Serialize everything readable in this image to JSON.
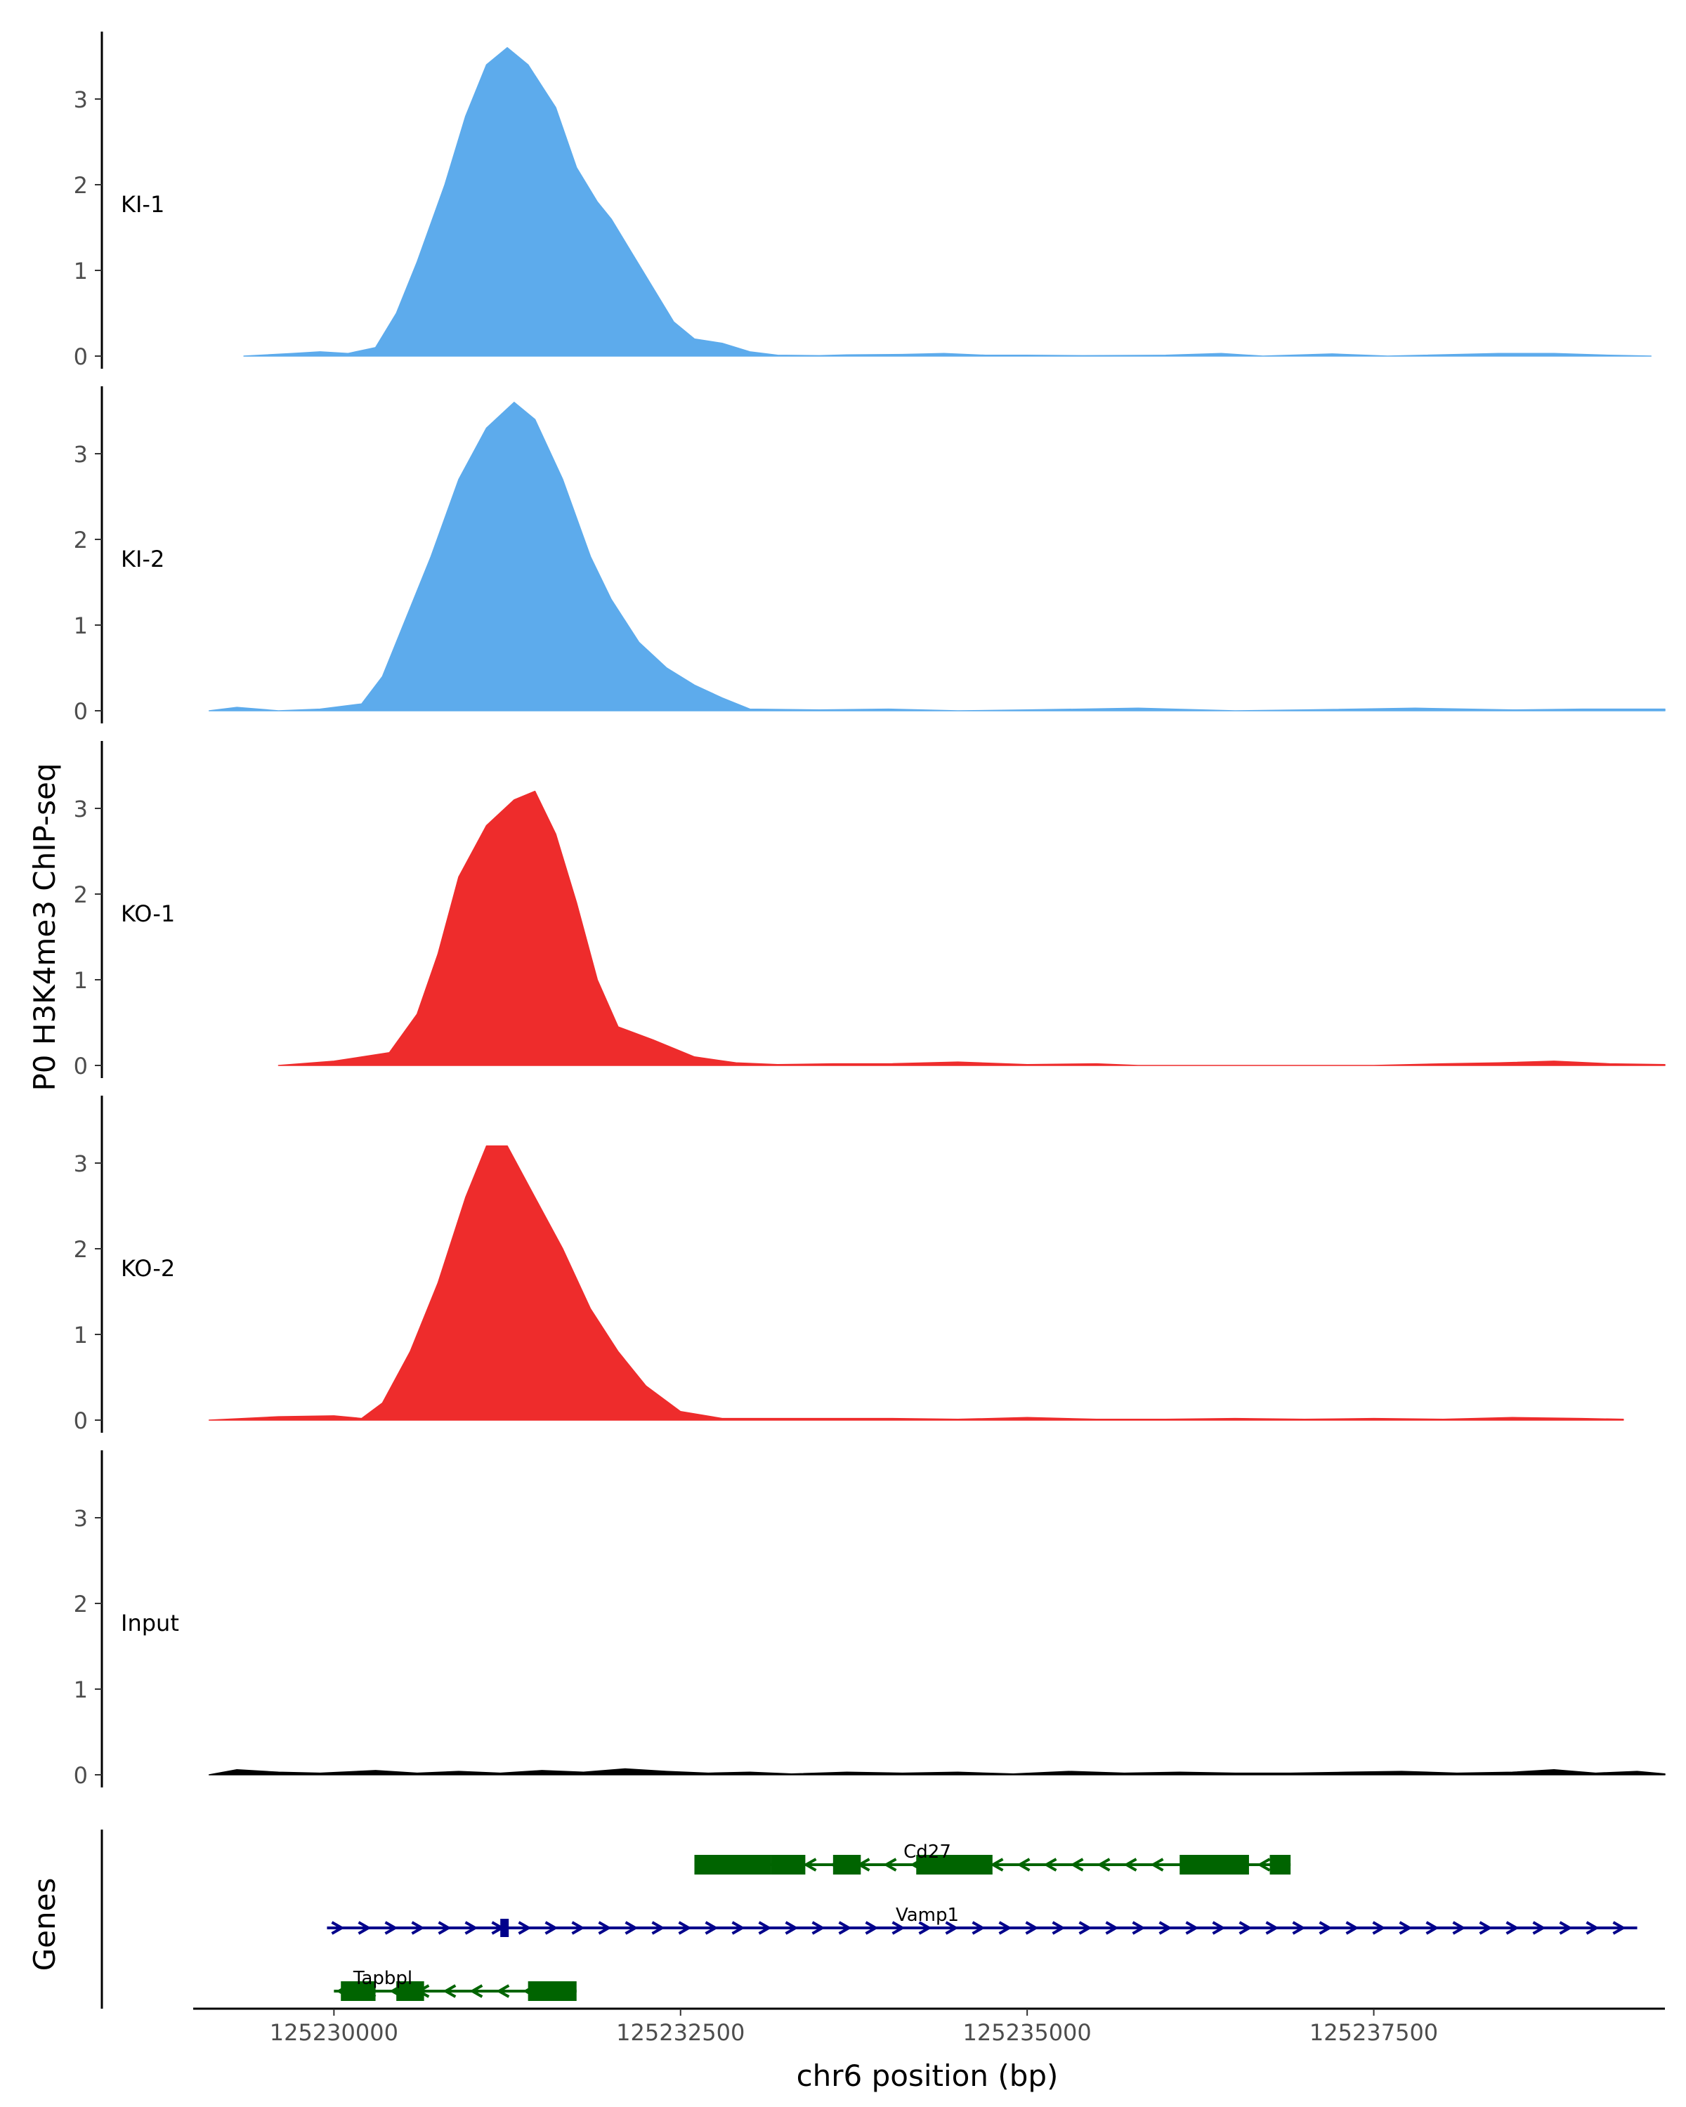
{
  "chart_data": {
    "type": "area",
    "y_axis_title": "P0 H3K4me3 ChIP-seq",
    "x_axis_title": "chr6 position (bp)",
    "xlim": [
      125229000,
      125239600
    ],
    "ylim": [
      0,
      3.8
    ],
    "y_ticks": [
      0,
      1,
      2,
      3
    ],
    "x_ticks": [
      125230000,
      125232500,
      125235000,
      125237500
    ],
    "x_tick_labels": [
      "125230000",
      "125232500",
      "125235000",
      "125237500"
    ],
    "grid": false,
    "tracks": [
      {
        "name": "KI-1",
        "color": "#5DABEC",
        "points": [
          [
            125229350,
            0
          ],
          [
            125229700,
            0.03
          ],
          [
            125229900,
            0.05
          ],
          [
            125230100,
            0.03
          ],
          [
            125230300,
            0.1
          ],
          [
            125230450,
            0.5
          ],
          [
            125230600,
            1.1
          ],
          [
            125230800,
            2.0
          ],
          [
            125230950,
            2.8
          ],
          [
            125231100,
            3.4
          ],
          [
            125231250,
            3.6
          ],
          [
            125231400,
            3.4
          ],
          [
            125231600,
            2.9
          ],
          [
            125231750,
            2.2
          ],
          [
            125231900,
            1.8
          ],
          [
            125232000,
            1.6
          ],
          [
            125232150,
            1.2
          ],
          [
            125232300,
            0.8
          ],
          [
            125232450,
            0.4
          ],
          [
            125232600,
            0.2
          ],
          [
            125232800,
            0.15
          ],
          [
            125233000,
            0.05
          ],
          [
            125233200,
            0.01
          ],
          [
            125233500,
            0.005
          ],
          [
            125233700,
            0.015
          ],
          [
            125234100,
            0.02
          ],
          [
            125234400,
            0.03
          ],
          [
            125234700,
            0.01
          ],
          [
            125235000,
            0.01
          ],
          [
            125235400,
            0.005
          ],
          [
            125236000,
            0.01
          ],
          [
            125236400,
            0.03
          ],
          [
            125236700,
            0
          ],
          [
            125237200,
            0.025
          ],
          [
            125237600,
            0
          ],
          [
            125238400,
            0.03
          ],
          [
            125238800,
            0.03
          ],
          [
            125239200,
            0.01
          ],
          [
            125239500,
            0
          ]
        ]
      },
      {
        "name": "KI-2",
        "color": "#5DABEC",
        "points": [
          [
            125229100,
            0
          ],
          [
            125229300,
            0.04
          ],
          [
            125229600,
            0
          ],
          [
            125229900,
            0.02
          ],
          [
            125230200,
            0.08
          ],
          [
            125230350,
            0.4
          ],
          [
            125230500,
            1.0
          ],
          [
            125230700,
            1.8
          ],
          [
            125230900,
            2.7
          ],
          [
            125231100,
            3.3
          ],
          [
            125231300,
            3.6
          ],
          [
            125231450,
            3.4
          ],
          [
            125231650,
            2.7
          ],
          [
            125231850,
            1.8
          ],
          [
            125232000,
            1.3
          ],
          [
            125232200,
            0.8
          ],
          [
            125232400,
            0.5
          ],
          [
            125232600,
            0.3
          ],
          [
            125232800,
            0.15
          ],
          [
            125233000,
            0.02
          ],
          [
            125233500,
            0.01
          ],
          [
            125234000,
            0.02
          ],
          [
            125234500,
            0
          ],
          [
            125235000,
            0.01
          ],
          [
            125235800,
            0.03
          ],
          [
            125236500,
            0
          ],
          [
            125237000,
            0.01
          ],
          [
            125237800,
            0.03
          ],
          [
            125238500,
            0.01
          ],
          [
            125239000,
            0.02
          ],
          [
            125239600,
            0.02
          ]
        ]
      },
      {
        "name": "KO-1",
        "color": "#EE2C2C",
        "points": [
          [
            125229600,
            0
          ],
          [
            125230000,
            0.05
          ],
          [
            125230400,
            0.15
          ],
          [
            125230600,
            0.6
          ],
          [
            125230750,
            1.3
          ],
          [
            125230900,
            2.2
          ],
          [
            125231100,
            2.8
          ],
          [
            125231300,
            3.1
          ],
          [
            125231450,
            3.2
          ],
          [
            125231600,
            2.7
          ],
          [
            125231750,
            1.9
          ],
          [
            125231900,
            1.0
          ],
          [
            125232050,
            0.45
          ],
          [
            125232300,
            0.3
          ],
          [
            125232600,
            0.1
          ],
          [
            125232900,
            0.03
          ],
          [
            125233200,
            0.01
          ],
          [
            125233600,
            0.02
          ],
          [
            125234000,
            0.02
          ],
          [
            125234500,
            0.04
          ],
          [
            125235000,
            0.01
          ],
          [
            125235500,
            0.02
          ],
          [
            125235800,
            0
          ],
          [
            125237500,
            0
          ],
          [
            125238000,
            0.02
          ],
          [
            125238400,
            0.03
          ],
          [
            125238800,
            0.05
          ],
          [
            125239200,
            0.02
          ],
          [
            125239600,
            0.01
          ]
        ]
      },
      {
        "name": "KO-2",
        "color": "#EE2C2C",
        "points": [
          [
            125229100,
            0
          ],
          [
            125229600,
            0.04
          ],
          [
            125230000,
            0.05
          ],
          [
            125230200,
            0.02
          ],
          [
            125230350,
            0.2
          ],
          [
            125230550,
            0.8
          ],
          [
            125230750,
            1.6
          ],
          [
            125230950,
            2.6
          ],
          [
            125231100,
            3.2
          ],
          [
            125231250,
            3.2
          ],
          [
            125231450,
            2.6
          ],
          [
            125231650,
            2.0
          ],
          [
            125231850,
            1.3
          ],
          [
            125232050,
            0.8
          ],
          [
            125232250,
            0.4
          ],
          [
            125232500,
            0.1
          ],
          [
            125232800,
            0.02
          ],
          [
            125233300,
            0.02
          ],
          [
            125234000,
            0.02
          ],
          [
            125234500,
            0.01
          ],
          [
            125235000,
            0.03
          ],
          [
            125235500,
            0.01
          ],
          [
            125236000,
            0.01
          ],
          [
            125236500,
            0.02
          ],
          [
            125237000,
            0.01
          ],
          [
            125237500,
            0.02
          ],
          [
            125238000,
            0.01
          ],
          [
            125238500,
            0.03
          ],
          [
            125239000,
            0.02
          ],
          [
            125239300,
            0.01
          ]
        ]
      },
      {
        "name": "Input",
        "color": "#000000",
        "points": [
          [
            125229100,
            0
          ],
          [
            125229300,
            0.06
          ],
          [
            125229600,
            0.03
          ],
          [
            125229900,
            0.02
          ],
          [
            125230300,
            0.05
          ],
          [
            125230600,
            0.02
          ],
          [
            125230900,
            0.04
          ],
          [
            125231200,
            0.02
          ],
          [
            125231500,
            0.05
          ],
          [
            125231800,
            0.03
          ],
          [
            125232100,
            0.07
          ],
          [
            125232400,
            0.04
          ],
          [
            125232700,
            0.02
          ],
          [
            125233000,
            0.03
          ],
          [
            125233300,
            0.01
          ],
          [
            125233700,
            0.03
          ],
          [
            125234100,
            0.02
          ],
          [
            125234500,
            0.03
          ],
          [
            125234900,
            0.01
          ],
          [
            125235300,
            0.04
          ],
          [
            125235700,
            0.02
          ],
          [
            125236100,
            0.03
          ],
          [
            125236500,
            0.02
          ],
          [
            125236900,
            0.02
          ],
          [
            125237300,
            0.03
          ],
          [
            125237700,
            0.04
          ],
          [
            125238100,
            0.02
          ],
          [
            125238500,
            0.03
          ],
          [
            125238800,
            0.06
          ],
          [
            125239100,
            0.02
          ],
          [
            125239400,
            0.04
          ],
          [
            125239600,
            0.01
          ]
        ]
      }
    ],
    "genes_panel": {
      "label": "Genes",
      "genes": [
        {
          "name": "Cd27",
          "color": "#006400",
          "strand": "-",
          "start": 125232600,
          "end": 125236900,
          "exons": [
            [
              125232600,
              125233150
            ],
            [
              125233150,
              125233400
            ],
            [
              125233600,
              125233800
            ],
            [
              125234200,
              125234750
            ],
            [
              125236100,
              125236600
            ],
            [
              125236750,
              125236900
            ]
          ]
        },
        {
          "name": "Vamp1",
          "color": "#00008B",
          "strand": "+",
          "start": 125229950,
          "end": 125239400,
          "exons": [
            [
              125231200,
              125231250
            ]
          ]
        },
        {
          "name": "Tapbpl",
          "color": "#006400",
          "strand": "-",
          "start": 125230000,
          "end": 125231750,
          "exons": [
            [
              125230050,
              125230300
            ],
            [
              125230450,
              125230650
            ],
            [
              125231400,
              125231750
            ]
          ]
        }
      ]
    }
  }
}
